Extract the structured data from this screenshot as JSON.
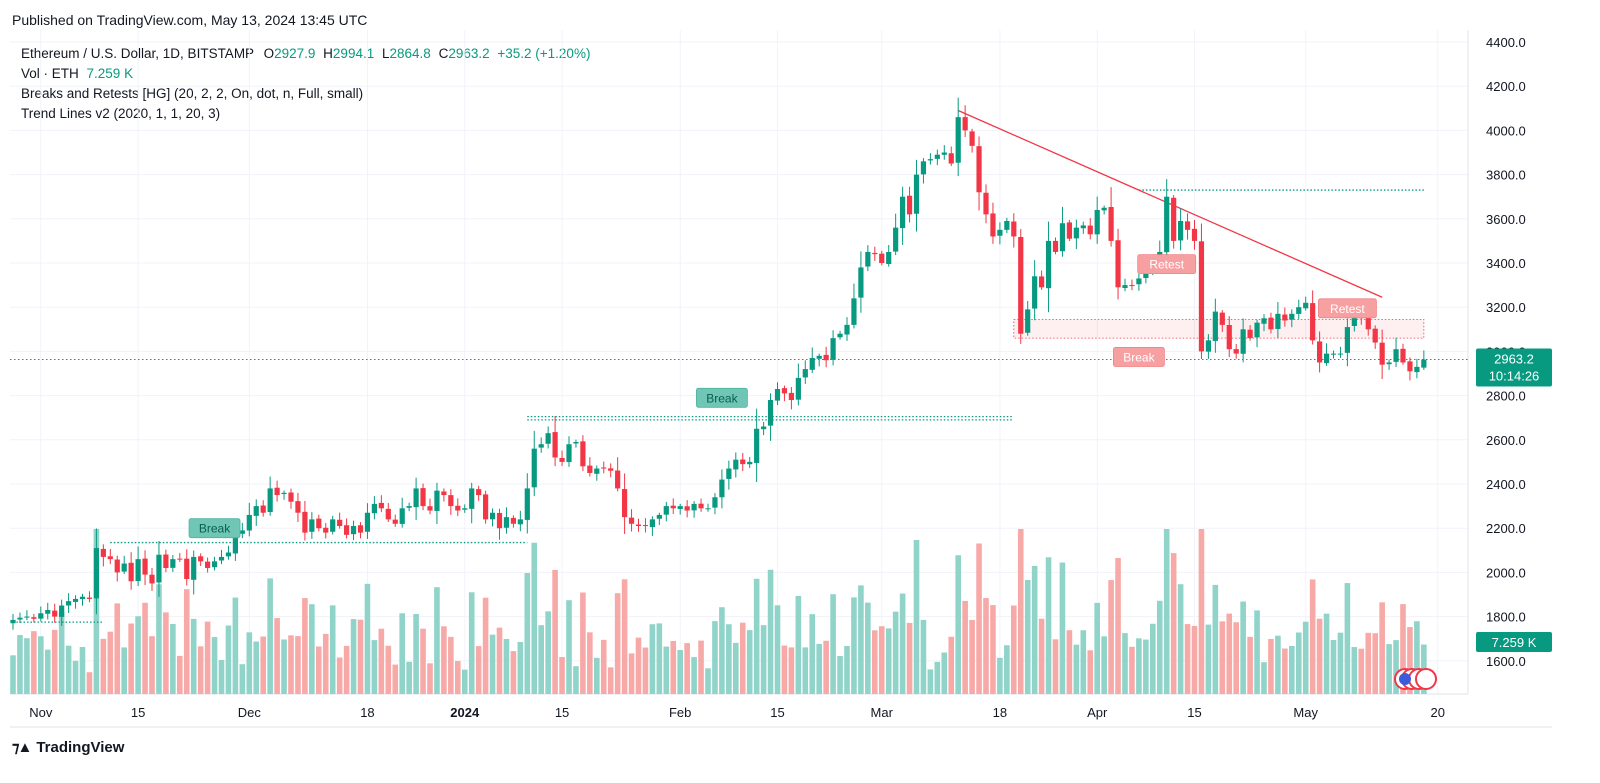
{
  "header": {
    "published": "Published on TradingView.com, May 13, 2024 13:45 UTC"
  },
  "legend": {
    "symbol": "Ethereum / U.S. Dollar, 1D, BITSTAMP",
    "o_label": "O",
    "o_value": "2927.9",
    "h_label": "H",
    "h_value": "2994.1",
    "l_label": "L",
    "l_value": "2864.8",
    "c_label": "C",
    "c_value": "2963.2",
    "change": "+35.2 (+1.20%)",
    "vol_label": "Vol · ETH",
    "vol_value": "7.259 K",
    "indicator1": "Breaks and Retests [HG] (20, 2, 2, On, dot, n, Full, small)",
    "indicator2": "Trend Lines v2 (2020, 1, 1, 20, 3)"
  },
  "footer": {
    "brand": "TradingView",
    "logo_icon": "tradingview-logo-icon"
  },
  "colors": {
    "up": "#089981",
    "down": "#f23645",
    "up_vol": "#8fd3c9",
    "down_vol": "#f7a9a7",
    "trend": "#f23645",
    "label_green": "#6fc6b4",
    "label_red": "#f6a0a2"
  },
  "chart_data": {
    "type": "candlestick",
    "title": "Ethereum / U.S. Dollar, 1D, BITSTAMP",
    "ylim": [
      1450,
      4450
    ],
    "y_ticks": [
      "1600.0",
      "1800.0",
      "2000.0",
      "2200.0",
      "2400.0",
      "2600.0",
      "2800.0",
      "3000.0",
      "3200.0",
      "3400.0",
      "3600.0",
      "3800.0",
      "4000.0",
      "4200.0",
      "4400.0"
    ],
    "x_ticks": [
      {
        "label": "Nov",
        "date": "2023-11-01"
      },
      {
        "label": "15",
        "date": "2023-11-15"
      },
      {
        "label": "Dec",
        "date": "2023-12-01"
      },
      {
        "label": "18",
        "date": "2023-12-18"
      },
      {
        "label": "2024",
        "date": "2024-01-01",
        "bold": true
      },
      {
        "label": "15",
        "date": "2024-01-15"
      },
      {
        "label": "Feb",
        "date": "2024-02-01"
      },
      {
        "label": "15",
        "date": "2024-02-15"
      },
      {
        "label": "Mar",
        "date": "2024-03-01"
      },
      {
        "label": "18",
        "date": "2024-03-18"
      },
      {
        "label": "Apr",
        "date": "2024-04-01"
      },
      {
        "label": "15",
        "date": "2024-04-15"
      },
      {
        "label": "May",
        "date": "2024-05-01"
      },
      {
        "label": "20",
        "date": "2024-05-20"
      }
    ],
    "start_date": "2023-10-28",
    "closes": [
      1785,
      1795,
      1800,
      1790,
      1815,
      1830,
      1800,
      1850,
      1870,
      1880,
      1890,
      1880,
      2110,
      2070,
      2060,
      2000,
      2040,
      1960,
      2060,
      1990,
      1950,
      2080,
      2020,
      2060,
      2060,
      1970,
      2070,
      2050,
      2020,
      2050,
      2070,
      2090,
      2170,
      2190,
      2260,
      2300,
      2270,
      2380,
      2350,
      2360,
      2320,
      2270,
      2180,
      2240,
      2200,
      2180,
      2240,
      2210,
      2170,
      2210,
      2180,
      2270,
      2310,
      2290,
      2240,
      2220,
      2290,
      2300,
      2380,
      2300,
      2280,
      2370,
      2350,
      2300,
      2280,
      2290,
      2380,
      2350,
      2240,
      2270,
      2200,
      2250,
      2220,
      2240,
      2380,
      2560,
      2580,
      2630,
      2520,
      2500,
      2580,
      2590,
      2480,
      2450,
      2470,
      2470,
      2460,
      2380,
      2250,
      2220,
      2210,
      2210,
      2240,
      2260,
      2300,
      2290,
      2300,
      2280,
      2310,
      2290,
      2290,
      2340,
      2420,
      2470,
      2510,
      2490,
      2500,
      2650,
      2660,
      2780,
      2830,
      2810,
      2780,
      2880,
      2920,
      2970,
      2980,
      2960,
      3060,
      3080,
      3120,
      3240,
      3380,
      3450,
      3440,
      3400,
      3450,
      3560,
      3700,
      3620,
      3800,
      3860,
      3870,
      3890,
      3900,
      3850,
      4060,
      4000,
      3930,
      3720,
      3620,
      3520,
      3550,
      3590,
      3520,
      3080,
      3190,
      3340,
      3290,
      3500,
      3450,
      3580,
      3510,
      3560,
      3570,
      3530,
      3640,
      3650,
      3500,
      3290,
      3300,
      3300,
      3330,
      3360,
      3390,
      3450,
      3700,
      3500,
      3590,
      3550,
      3500,
      3000,
      3050,
      3180,
      3120,
      3010,
      2990,
      3100,
      3060,
      3130,
      3150,
      3100,
      3170,
      3140,
      3170,
      3200,
      3220,
      3050,
      2950,
      2990,
      2990,
      2990,
      3110,
      3160,
      3150,
      3100,
      3040,
      2940,
      2950,
      3010,
      2950,
      2910,
      2930,
      2963
    ],
    "volume_ticks": [
      "7.259 K"
    ],
    "annotations": [
      {
        "type": "label",
        "text": "Break",
        "style": "green",
        "date": "2023-11-26",
        "price": 2200
      },
      {
        "type": "label",
        "text": "Break",
        "style": "green",
        "date": "2024-02-07",
        "price": 2790
      },
      {
        "type": "label",
        "text": "Break",
        "style": "red",
        "date": "2024-04-07",
        "price": 2975
      },
      {
        "type": "label",
        "text": "Retest",
        "style": "red",
        "date": "2024-04-11",
        "price": 3395
      },
      {
        "type": "label",
        "text": "Retest",
        "style": "red",
        "date": "2024-05-07",
        "price": 3195
      }
    ],
    "last_price": {
      "value": "2963.2",
      "countdown": "10:14:26",
      "price": 2963.2
    },
    "last_volume": {
      "value": "7.259 K"
    }
  }
}
